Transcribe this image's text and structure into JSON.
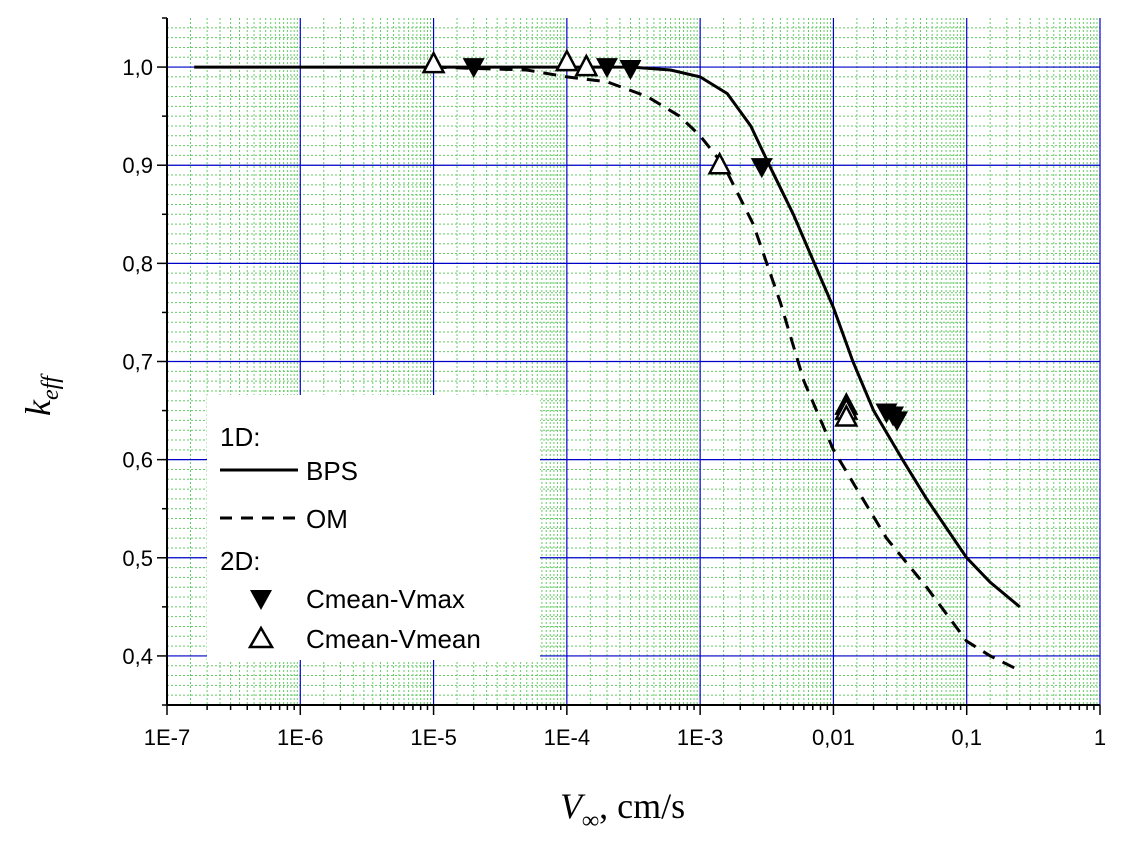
{
  "chart_data": {
    "type": "line",
    "xlabel_main": "V",
    "xlabel_sub": "∞",
    "xlabel_rest": ", cm/s",
    "ylabel_main": "k",
    "ylabel_sub": "eff",
    "xscale": "log",
    "xlim": [
      1e-07,
      1
    ],
    "ylim": [
      0.35,
      1.05
    ],
    "grid": true,
    "x_ticks": [
      1e-07,
      1e-06,
      1e-05,
      0.0001,
      0.001,
      0.01,
      0.1,
      1
    ],
    "x_tick_labels": [
      "1E-7",
      "1E-6",
      "1E-5",
      "1E-4",
      "1E-3",
      "0,01",
      "0,1",
      "1"
    ],
    "y_ticks": [
      0.4,
      0.5,
      0.6,
      0.7,
      0.8,
      0.9,
      1.0
    ],
    "y_tick_labels": [
      "0,4",
      "0,5",
      "0,6",
      "0,7",
      "0,8",
      "0,9",
      "1,0"
    ],
    "legend": {
      "placement": "lower-left",
      "group1": "1D:",
      "group2": "2D:",
      "entries": [
        "BPS",
        "OM",
        "Cmean-Vmax",
        "Cmean-Vmean"
      ]
    },
    "series": [
      {
        "name": "BPS",
        "style": "solid",
        "points": [
          [
            1.6e-07,
            1
          ],
          [
            1e-05,
            1
          ],
          [
            0.0001,
            1
          ],
          [
            0.0003,
            1
          ],
          [
            0.0006,
            0.997
          ],
          [
            0.001,
            0.99
          ],
          [
            0.0016,
            0.973
          ],
          [
            0.0024,
            0.94
          ],
          [
            0.0033,
            0.9
          ],
          [
            0.005,
            0.85
          ],
          [
            0.0072,
            0.8
          ],
          [
            0.01,
            0.755
          ],
          [
            0.014,
            0.7
          ],
          [
            0.02,
            0.65
          ],
          [
            0.033,
            0.6
          ],
          [
            0.05,
            0.56
          ],
          [
            0.1,
            0.5
          ],
          [
            0.15,
            0.475
          ],
          [
            0.25,
            0.45
          ]
        ]
      },
      {
        "name": "OM",
        "style": "dashed",
        "points": [
          [
            1e-05,
            1
          ],
          [
            5e-05,
            0.997
          ],
          [
            0.0001,
            0.99
          ],
          [
            0.0002,
            0.985
          ],
          [
            0.0004,
            0.97
          ],
          [
            0.0007,
            0.95
          ],
          [
            0.001,
            0.93
          ],
          [
            0.0015,
            0.9
          ],
          [
            0.0025,
            0.84
          ],
          [
            0.004,
            0.76
          ],
          [
            0.006,
            0.68
          ],
          [
            0.01,
            0.61
          ],
          [
            0.015,
            0.57
          ],
          [
            0.025,
            0.52
          ],
          [
            0.05,
            0.47
          ],
          [
            0.1,
            0.415
          ],
          [
            0.15,
            0.4
          ],
          [
            0.25,
            0.385
          ]
        ]
      },
      {
        "name": "Cmean-Vmax",
        "style": "marker-filled-down-triangle",
        "points": [
          [
            2e-05,
            1.0
          ],
          [
            0.0002,
            1.0
          ],
          [
            0.0003,
            0.998
          ],
          [
            0.0029,
            0.898
          ],
          [
            0.025,
            0.648
          ],
          [
            0.028,
            0.645
          ],
          [
            0.03,
            0.64
          ]
        ]
      },
      {
        "name": "Cmean-Vmean",
        "style": "marker-open-up-triangle",
        "points": [
          [
            1e-05,
            1.003
          ],
          [
            0.0001,
            1.005
          ],
          [
            0.00014,
            1.0
          ],
          [
            0.0014,
            0.9
          ],
          [
            0.0125,
            0.655
          ],
          [
            0.0125,
            0.65
          ],
          [
            0.0125,
            0.643
          ]
        ]
      }
    ]
  },
  "colors": {
    "major_grid": "#0000cc",
    "minor_grid": "#66cc66",
    "line": "#000000"
  }
}
